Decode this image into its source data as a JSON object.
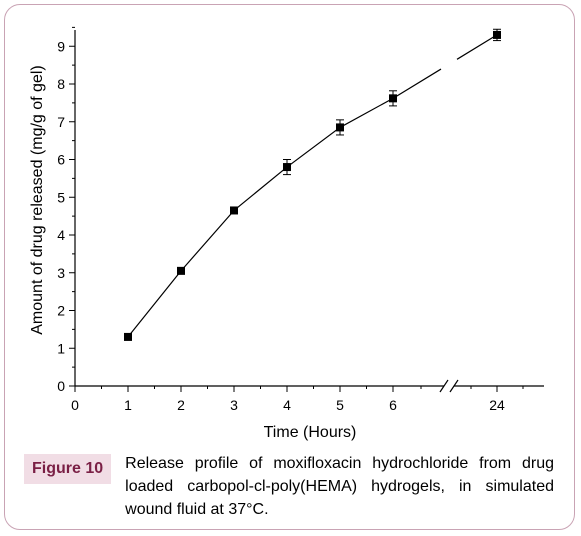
{
  "chart_data": {
    "type": "line",
    "xlabel": "Time (Hours)",
    "ylabel": "Amount of drug released (mg/g of gel)",
    "x_tick_labels": [
      "0",
      "1",
      "2",
      "3",
      "4",
      "5",
      "6",
      "24"
    ],
    "y_tick_labels": [
      "0",
      "1",
      "2",
      "3",
      "4",
      "5",
      "6",
      "7",
      "8",
      "9"
    ],
    "ylim": [
      0,
      9.5
    ],
    "x_axis_break": "between 6 and 24",
    "grid": false,
    "series": [
      {
        "marker": "square",
        "color": "#000000",
        "x": [
          1,
          2,
          3,
          4,
          5,
          6,
          24
        ],
        "y": [
          1.3,
          3.05,
          4.65,
          5.8,
          6.85,
          7.62,
          9.3
        ],
        "error": [
          0.05,
          0.07,
          0.07,
          0.2,
          0.2,
          0.2,
          0.15
        ]
      }
    ]
  },
  "caption": {
    "label": "Figure 10",
    "text": "Release profile of moxifloxacin hydrochloride from drug loaded carbopol-cl-poly(HEMA) hydrogels, in simulated wound fluid at 37°C."
  },
  "colors": {
    "frame": "#c9a3b4",
    "label_bg": "#f1dde5",
    "label_text": "#7a1f45"
  }
}
